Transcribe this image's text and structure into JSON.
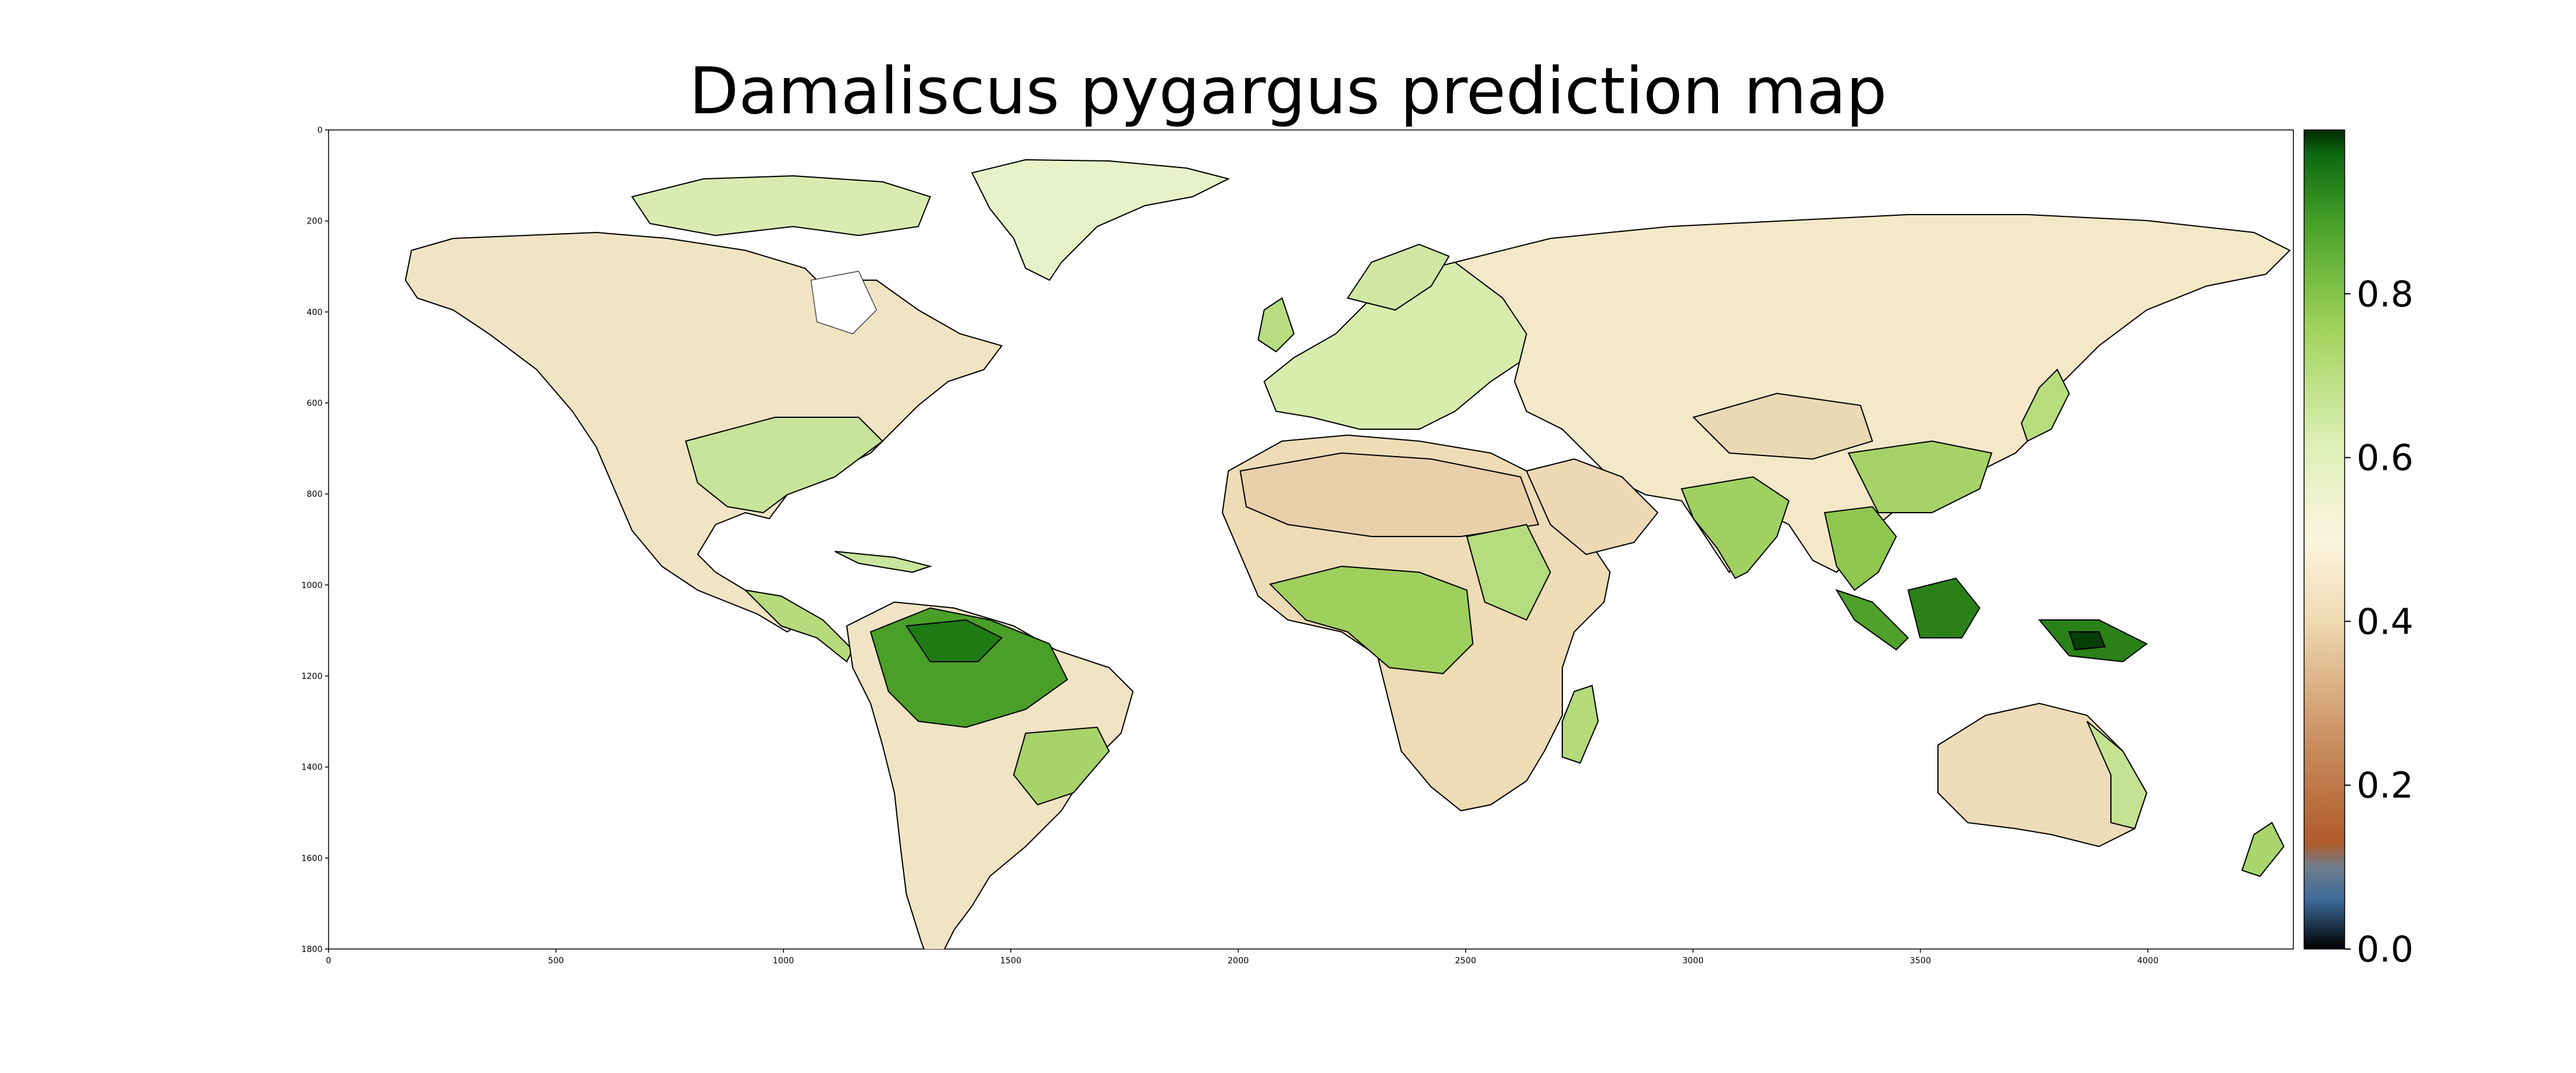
{
  "title": "Damaliscus pygargus prediction map",
  "axes": {
    "x_ticks": [
      "0",
      "500",
      "1000",
      "1500",
      "2000",
      "2500",
      "3000",
      "3500",
      "4000"
    ],
    "y_ticks": [
      "0",
      "200",
      "400",
      "600",
      "800",
      "1000",
      "1200",
      "1400",
      "1600",
      "1800"
    ]
  },
  "colorbar": {
    "ticks": [
      "0.0",
      "0.2",
      "0.4",
      "0.6",
      "0.8"
    ],
    "colors": [
      "#000000",
      "#3c6b9a",
      "#b05a2a",
      "#d7a87a",
      "#f4e7c6",
      "#fbf5de",
      "#cde8a0",
      "#7fc341",
      "#35911d",
      "#0a5a0a",
      "#003000"
    ]
  },
  "chart_data": {
    "type": "heatmap",
    "title": "Damaliscus pygargus prediction map",
    "xlim": [
      0,
      4320
    ],
    "ylim": [
      1800,
      0
    ],
    "x_ticks": [
      0,
      500,
      1000,
      1500,
      2000,
      2500,
      3000,
      3500,
      4000
    ],
    "y_ticks": [
      0,
      200,
      400,
      600,
      800,
      1000,
      1200,
      1400,
      1600,
      1800
    ],
    "colorbar_range": [
      0.0,
      1.0
    ],
    "colorbar_ticks": [
      0.0,
      0.2,
      0.4,
      0.6,
      0.8
    ]
  }
}
